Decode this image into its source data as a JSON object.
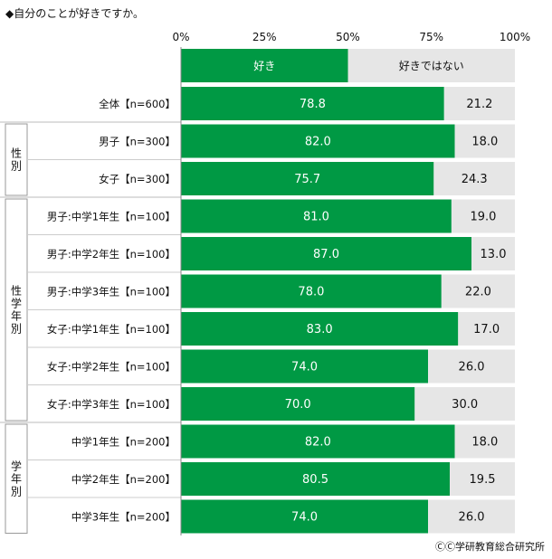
{
  "chart_data": {
    "type": "bar",
    "orientation": "horizontal",
    "stacked": true,
    "title": "◆自分のことが好きですか。",
    "xlim": [
      0,
      100
    ],
    "ticks": [
      "0%",
      "25%",
      "50%",
      "75%",
      "100%"
    ],
    "legend": [
      "好き",
      "好きではない"
    ],
    "colors": {
      "like": "#009944",
      "dislike": "#e6e6e6"
    },
    "groups": [
      {
        "label": "",
        "rows": [
          {
            "category": "全体【n=600】",
            "like": 78.8,
            "dislike": 21.2
          }
        ]
      },
      {
        "label": "性別",
        "rows": [
          {
            "category": "男子【n=300】",
            "like": 82.0,
            "dislike": 18.0
          },
          {
            "category": "女子【n=300】",
            "like": 75.7,
            "dislike": 24.3
          }
        ]
      },
      {
        "label": "性学年別",
        "rows": [
          {
            "category": "男子:中学1年生【n=100】",
            "like": 81.0,
            "dislike": 19.0
          },
          {
            "category": "男子:中学2年生【n=100】",
            "like": 87.0,
            "dislike": 13.0
          },
          {
            "category": "男子:中学3年生【n=100】",
            "like": 78.0,
            "dislike": 22.0
          },
          {
            "category": "女子:中学1年生【n=100】",
            "like": 83.0,
            "dislike": 17.0
          },
          {
            "category": "女子:中学2年生【n=100】",
            "like": 74.0,
            "dislike": 26.0
          },
          {
            "category": "女子:中学3年生【n=100】",
            "like": 70.0,
            "dislike": 30.0
          }
        ]
      },
      {
        "label": "学年別",
        "rows": [
          {
            "category": "中学1年生【n=200】",
            "like": 82.0,
            "dislike": 18.0
          },
          {
            "category": "中学2年生【n=200】",
            "like": 80.5,
            "dislike": 19.5
          },
          {
            "category": "中学3年生【n=200】",
            "like": 74.0,
            "dislike": 26.0
          }
        ]
      }
    ]
  },
  "credit": "ⒸⒸ学研教育総合研究所"
}
